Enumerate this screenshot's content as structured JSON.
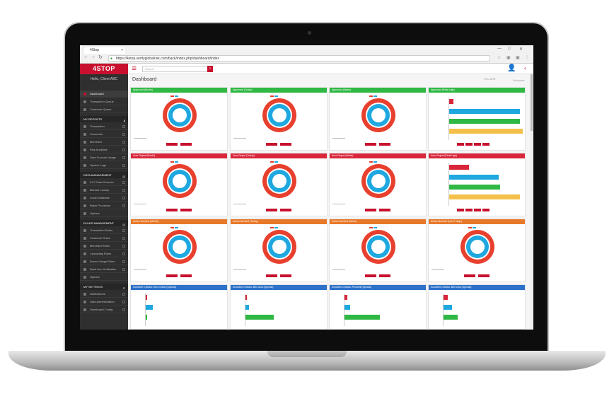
{
  "browser": {
    "tab_title": "4Stop",
    "url": "https://4stop.verifyglobalrisk.com/back/index.php/dashboard/index",
    "min": "—",
    "max": "□",
    "close": "✕"
  },
  "sidebar": {
    "logo": "4STOP",
    "hello": "Hello, Client ABC",
    "items": [
      {
        "label": "Dashboard",
        "active": true
      },
      {
        "label": "Transaction Queue"
      },
      {
        "label": "Customer Queue"
      }
    ],
    "reports_header": "MY REPORTS",
    "reports": [
      "Transaction",
      "Consumer",
      "Merchant",
      "Risk Analytics",
      "Data Sources Usage",
      "System Logs"
    ],
    "data_header": "DATA MANAGEMENT",
    "data": [
      "KYC Data Sources",
      "Manual Lookup",
      "Local Database",
      "Batch Processor",
      "Options"
    ],
    "rules_header": "RULES MANAGEMENT",
    "rules": [
      "Transaction Rules",
      "Customer Rules",
      "Merchant Rules",
      "Cascading Rules",
      "Bonus Usage Rules",
      "Bank Acc Verification",
      "Options"
    ],
    "settings_header": "MY SETTINGS",
    "settings": [
      "Notifications",
      "Data Administration",
      "Dashboard Config"
    ]
  },
  "topbar": {
    "search_placeholder": "Search",
    "menu_icon": "hamburger-icon",
    "user_icon": "user-icon"
  },
  "page": {
    "title": "Dashboard",
    "you_are": "YOU ARE",
    "welcome": "Welcome"
  },
  "panels": {
    "row1": [
      "Approved (Month)",
      "Approved (Today)",
      "Approved (Week)",
      "Approved (Peak Hgh)"
    ],
    "row2": [
      "Auto-Reject (Month)",
      "Auto-Reject (Today)",
      "Auto-Reject (Week)",
      "Auto-Reject (Peak Hgh)"
    ],
    "row3": [
      "Action Needed (Month)",
      "Action Needed (Today)",
      "Action Needed (Week)",
      "Action Needed (Last 7 days)"
    ],
    "row4": [
      "Scrubber Checks: Geo Check (Special)",
      "Scrubber Checks: BIN USA (Special)",
      "Scrubber Checks: Phonelit (Special)",
      "Scrubber Checks: BIN USA (Special)"
    ]
  },
  "colors": {
    "green": "#2fb843",
    "red": "#d9263a",
    "orange": "#e8792a",
    "blue": "#2d71c9",
    "donut_outer": "#e8402e",
    "donut_inner": "#1ea8df"
  }
}
